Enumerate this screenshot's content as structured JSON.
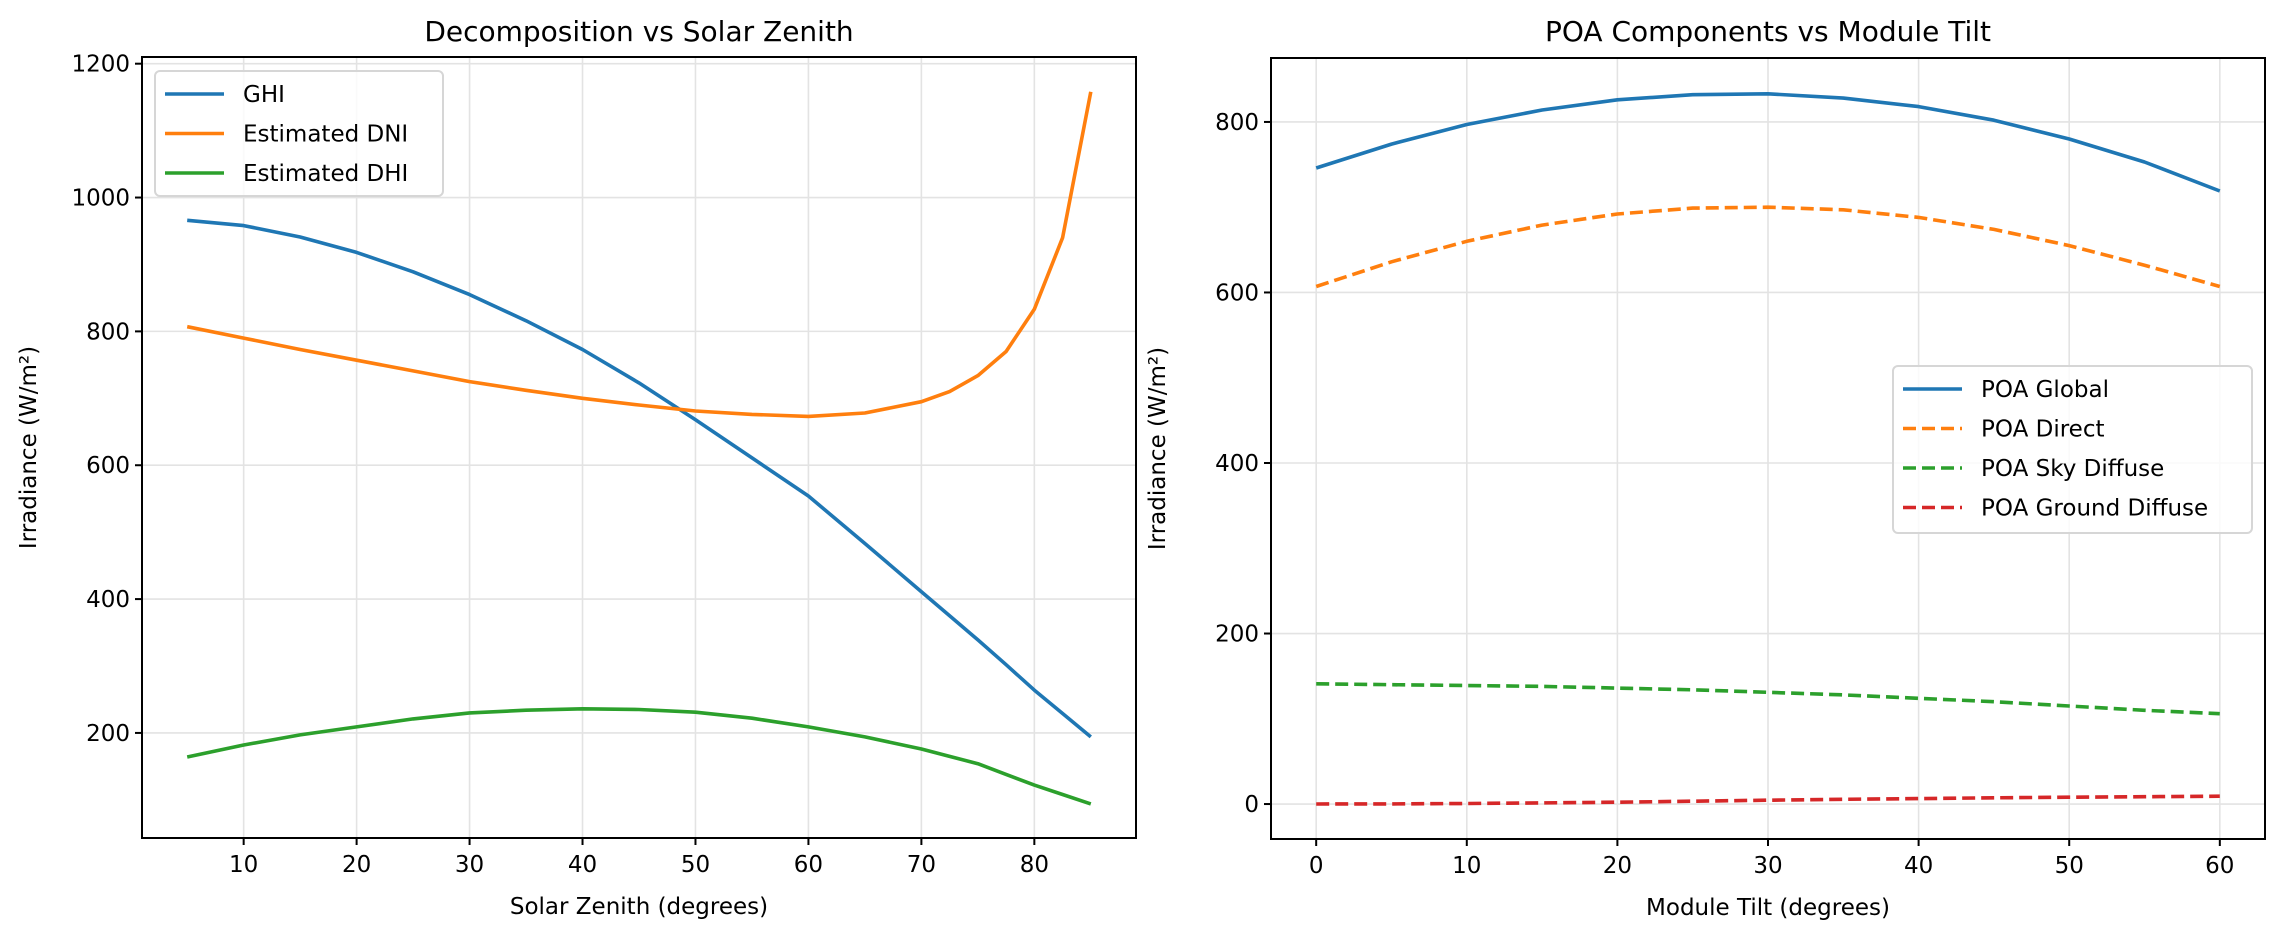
{
  "chart_data": [
    {
      "type": "line",
      "title": "Decomposition vs Solar Zenith",
      "xlabel": "Solar Zenith (degrees)",
      "ylabel": "Irradiance (W/m²)",
      "xlim": [
        1,
        89
      ],
      "ylim": [
        43,
        1210
      ],
      "xticks": [
        10,
        20,
        30,
        40,
        50,
        60,
        70,
        80
      ],
      "yticks": [
        200,
        400,
        600,
        800,
        1000,
        1200
      ],
      "grid": true,
      "legend": "top-left",
      "x": [
        5,
        10,
        15,
        20,
        25,
        30,
        35,
        40,
        45,
        50,
        55,
        60,
        65,
        70,
        72.5,
        75,
        77.5,
        80,
        82.5,
        85
      ],
      "series": [
        {
          "name": "GHI",
          "color": "#1f77b4",
          "linestyle": "solid",
          "values": [
            966,
            958,
            941,
            918,
            889,
            855,
            816,
            773,
            723,
            668,
            611,
            554,
            483,
            411,
            375,
            339,
            302,
            264,
            229,
            194
          ]
        },
        {
          "name": "Estimated DNI",
          "color": "#ff7f0e",
          "linestyle": "solid",
          "values": [
            807,
            790,
            773,
            757,
            741,
            725,
            712,
            700,
            690,
            681,
            676,
            673,
            678,
            695,
            710,
            734,
            770,
            833,
            940,
            1158
          ]
        },
        {
          "name": "Estimated DHI",
          "color": "#2ca02c",
          "linestyle": "solid",
          "values": [
            164,
            182,
            197,
            209,
            221,
            230,
            234,
            236,
            235,
            231,
            222,
            209,
            194,
            176,
            165,
            154,
            138,
            122,
            108,
            94
          ]
        }
      ]
    },
    {
      "type": "line",
      "title": "POA Components vs Module Tilt",
      "xlabel": "Module Tilt (degrees)",
      "ylabel": "Irradiance (W/m²)",
      "xlim": [
        -3,
        63
      ],
      "ylim": [
        -41,
        875
      ],
      "xticks": [
        0,
        10,
        20,
        30,
        40,
        50,
        60
      ],
      "yticks": [
        0,
        200,
        400,
        600,
        800
      ],
      "grid": true,
      "legend": "center-right",
      "x": [
        0,
        5,
        10,
        15,
        20,
        25,
        30,
        35,
        40,
        45,
        50,
        55,
        60
      ],
      "series": [
        {
          "name": "POA Global",
          "color": "#1f77b4",
          "linestyle": "solid",
          "values": [
            746,
            774,
            797,
            814,
            826,
            832,
            833,
            828,
            818,
            802,
            780,
            753,
            719
          ]
        },
        {
          "name": "POA Direct",
          "color": "#ff7f0e",
          "linestyle": "dashed",
          "values": [
            607,
            636,
            660,
            679,
            692,
            699,
            700,
            697,
            688,
            674,
            655,
            632,
            607
          ]
        },
        {
          "name": "POA Sky Diffuse",
          "color": "#2ca02c",
          "linestyle": "dashed",
          "values": [
            141,
            140,
            139,
            138,
            136,
            134,
            131,
            128,
            124,
            120,
            115,
            110,
            106
          ]
        },
        {
          "name": "POA Ground Diffuse",
          "color": "#d62728",
          "linestyle": "dashed",
          "values": [
            0,
            0.2,
            0.6,
            1.3,
            2.2,
            3.3,
            4.5,
            5.6,
            6.4,
            7.3,
            8.0,
            8.6,
            9.2
          ]
        }
      ]
    }
  ]
}
